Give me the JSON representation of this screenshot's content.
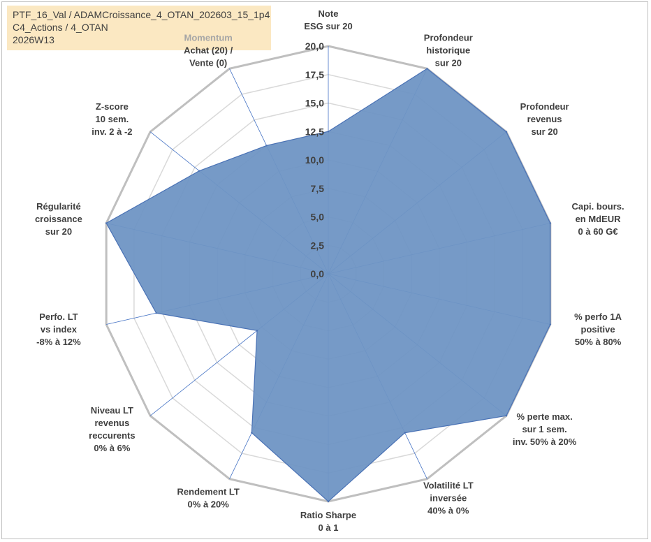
{
  "info": {
    "line1": "PTF_16_Val / ADAMCroissance_4_OTAN_202603_15_1p4",
    "line2": "C4_Actions / 4_OTAN",
    "line3": "2026W13"
  },
  "colors": {
    "fill": "#6f95c4",
    "stroke": "#4a72b5",
    "outer_grid": "#bfbfbf",
    "inner_grid": "#d9d9d9",
    "spoke": "#4472c4",
    "label": "#404040",
    "momentum": "#a6a6a6"
  },
  "chart_data": {
    "type": "radar",
    "rmin": 0,
    "rmax": 20,
    "tick_step": 2.5,
    "tick_labels": [
      "0,0",
      "2,5",
      "5,0",
      "7,5",
      "10,0",
      "12,5",
      "15,0",
      "17,5",
      "20,0"
    ],
    "axes": [
      {
        "lines": [
          "Note",
          "ESG sur 20"
        ],
        "value": 12.5
      },
      {
        "lines": [
          "Profondeur",
          "historique",
          "sur 20"
        ],
        "value": 20
      },
      {
        "lines": [
          "Profondeur",
          "revenus",
          "sur 20"
        ],
        "value": 20
      },
      {
        "lines": [
          "Capi. bours.",
          "en MdEUR",
          "0 à 60 G€"
        ],
        "value": 20
      },
      {
        "lines": [
          "% perfo 1A",
          "positive",
          "50% à 80%"
        ],
        "value": 20
      },
      {
        "lines": [
          "% perte max.",
          "sur 1 sem.",
          "inv. 50% à 20%"
        ],
        "value": 20
      },
      {
        "lines": [
          "Volatilité LT",
          "inversée",
          "40% à 0%"
        ],
        "value": 15.5
      },
      {
        "lines": [
          "Ratio Sharpe",
          "0 à 1"
        ],
        "value": 20
      },
      {
        "lines": [
          "Rendement LT",
          "0% à 20%"
        ],
        "value": 15.5
      },
      {
        "lines": [
          "Niveau LT",
          "revenus",
          "reccurents",
          "0% à 6%"
        ],
        "value": 8.0
      },
      {
        "lines": [
          "Perfo. LT",
          "vs index",
          "-8% à 12%"
        ],
        "value": 15.5
      },
      {
        "lines": [
          "Régularité",
          "croissance",
          "sur 20"
        ],
        "value": 20
      },
      {
        "lines": [
          "Z-score",
          "10 sem.",
          "inv. 2 à -2"
        ],
        "value": 14.5
      },
      {
        "lines": [
          "Momentum",
          "Achat (20) /",
          "Vente (0)"
        ],
        "value": 12.5
      }
    ]
  }
}
